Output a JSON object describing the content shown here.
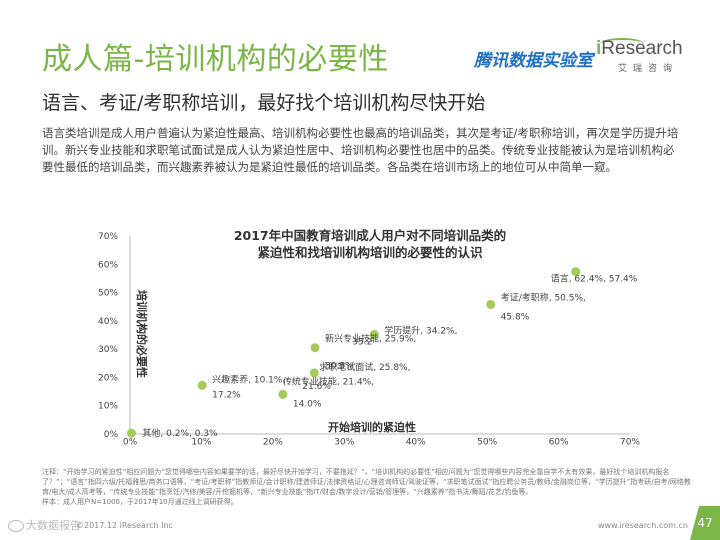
{
  "header": {
    "title": "成人篇-培训机构的必要性",
    "logo_tencent": "腾讯数据实验室",
    "logo_iresearch_i": "i",
    "logo_iresearch_rest": "Research",
    "logo_iresearch_sub": "艾瑞咨询"
  },
  "subtitle": "语言、考证/考职称培训，最好找个培训机构尽快开始",
  "paragraph": "语言类培训是成人用户普遍认为紧迫性最高、培训机构必要性也最高的培训品类，其次是考证/考职称培训，再次是学历提升培训。新兴专业技能和求职笔试面试是成人认为紧迫性居中、培训机构必要性也居中的品类。传统专业技能被认为是培训机构必要性最低的培训品类，而兴趣素养被认为是紧迫性最低的培训品类。各品类在培训市场上的地位可从中简单一窥。",
  "chart_data": {
    "type": "scatter",
    "title_line1": "2017年中国教育培训成人用户对不同培训品类的",
    "title_line2": "紧迫性和找培训机构培训的必要性的认识",
    "xlabel": "开始培训的紧迫性",
    "ylabel": "培训机构的必要性",
    "xlim": [
      0,
      70
    ],
    "ylim": [
      0,
      70
    ],
    "x_ticks": [
      "0%",
      "10%",
      "20%",
      "30%",
      "40%",
      "50%",
      "60%",
      "70%"
    ],
    "y_ticks": [
      "0%",
      "10%",
      "20%",
      "30%",
      "40%",
      "50%",
      "60%",
      "70%"
    ],
    "marker_color": "#a4cc5a",
    "points": [
      {
        "name": "语言",
        "x": 62.4,
        "y": 57.4,
        "label": "语言, 62.4%, 57.4%"
      },
      {
        "name": "考证/考职称",
        "x": 50.5,
        "y": 45.8,
        "label_line1": "考证/考职称, 50.5%,",
        "label_line2": "45.8%"
      },
      {
        "name": "学历提升",
        "x": 34.2,
        "y": 35.2,
        "label": "学历提升, 34.2%,"
      },
      {
        "name": "新兴专业技能",
        "x": 25.9,
        "y": 30.5,
        "label_line1": "新兴专业技能, 25.9%,",
        "label_line2": "30.5%"
      },
      {
        "name": "求职笔试面试",
        "x": 25.8,
        "y": 21.6,
        "label": "求职笔试面试, 25.8%,"
      },
      {
        "name": "传统专业技能",
        "x": 21.4,
        "y": 14.0,
        "label_line1": "传统专业技能, 21.4%,",
        "label_line2": "14.0%"
      },
      {
        "name": "兴趣素养",
        "x": 10.1,
        "y": 17.2,
        "label_line1": "兴趣素养, 10.1%,",
        "label_line2": "17.2%"
      },
      {
        "name": "其他",
        "x": 0.2,
        "y": 0.3,
        "label": "其他, 0.2%, 0.3%"
      }
    ],
    "overlap_fragments": {
      "xueli_y": "35.2",
      "qiuzhi_y": "21.6%"
    }
  },
  "notes": "注释：“开始学习的紧迫性”相应问题为“您觉得哪些内容如果要学的话，最好尽快开始学习，不要拖延？”，“培训机构的必要性”相应问题为“您觉得哪些内容完全靠自学不太有效果，最好找个培训机构报名了？”；“语言”指四六级/托福雅思/商务口语等，“考证/考职称”指教师证/会计职称/建造师证/法律资格证/心理咨询师证/驾驶证等，“求职笔试面试”指应聘公务员/教师/金融岗位等，“学历提升”指考研/自考/网络教育/电大/成人高考等，“传统专业技能”指烹饪/汽修/美容/开挖掘机等，“新兴专业技能”指IT/财会/数字设计/营销/管理等，“兴趣素养”指书法/舞蹈/花艺/钓鱼等。\n样本：成人用户N=1000，于2017年10月通过线上调研获得。",
  "footer": {
    "watermark": "大数据报告",
    "source": "©2017.12 iResearch Inc",
    "url": "www.iresearch.com.cn",
    "page": "47"
  }
}
